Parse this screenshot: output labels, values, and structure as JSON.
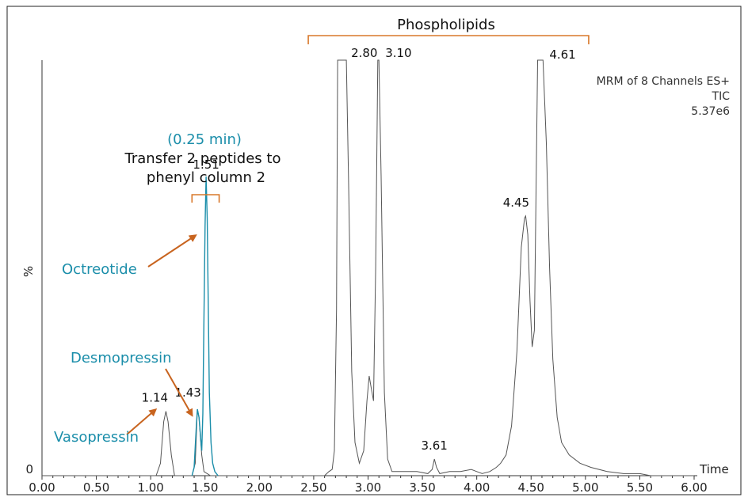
{
  "chart_data": {
    "type": "line",
    "ylabel": "%",
    "xlabel": "Time",
    "xlim": [
      0,
      6
    ],
    "ylim": [
      0,
      100
    ],
    "x_ticks": [
      "0.00",
      "0.50",
      "1.00",
      "1.50",
      "2.00",
      "2.50",
      "3.00",
      "3.50",
      "4.00",
      "4.50",
      "5.00",
      "5.50",
      "6.00"
    ],
    "y_ticks": [
      "0"
    ],
    "info_lines": [
      "MRM of 8 Channels ES+",
      "TIC",
      "5.37e6"
    ],
    "series": [
      {
        "color": "#555555",
        "points": [
          [
            0,
            0
          ],
          [
            1.05,
            0
          ],
          [
            1.09,
            3
          ],
          [
            1.12,
            13
          ],
          [
            1.14,
            15.5
          ],
          [
            1.16,
            13
          ],
          [
            1.19,
            5
          ],
          [
            1.22,
            0
          ],
          [
            1.38,
            0
          ],
          [
            1.41,
            3
          ],
          [
            1.43,
            16
          ],
          [
            1.445,
            14
          ],
          [
            1.455,
            10
          ],
          [
            1.47,
            5
          ],
          [
            1.49,
            1
          ],
          [
            1.55,
            0
          ],
          [
            2.6,
            0
          ],
          [
            2.64,
            1
          ],
          [
            2.67,
            1.5
          ],
          [
            2.69,
            6
          ],
          [
            2.71,
            40
          ],
          [
            2.72,
            100
          ],
          [
            2.8,
            100
          ],
          [
            2.82,
            72
          ],
          [
            2.85,
            25
          ],
          [
            2.88,
            8
          ],
          [
            2.92,
            3
          ],
          [
            2.96,
            6
          ],
          [
            2.99,
            18
          ],
          [
            3.01,
            24
          ],
          [
            3.03,
            21
          ],
          [
            3.05,
            18
          ],
          [
            3.07,
            50
          ],
          [
            3.09,
            100
          ],
          [
            3.1,
            100
          ],
          [
            3.12,
            72
          ],
          [
            3.15,
            20
          ],
          [
            3.18,
            4
          ],
          [
            3.22,
            1
          ],
          [
            3.3,
            1
          ],
          [
            3.45,
            1
          ],
          [
            3.55,
            0.5
          ],
          [
            3.59,
            1.5
          ],
          [
            3.61,
            4
          ],
          [
            3.63,
            2
          ],
          [
            3.66,
            0.5
          ],
          [
            3.75,
            1
          ],
          [
            3.85,
            1
          ],
          [
            3.95,
            1.5
          ],
          [
            4.0,
            1
          ],
          [
            4.05,
            0.5
          ],
          [
            4.12,
            1
          ],
          [
            4.18,
            2
          ],
          [
            4.22,
            3
          ],
          [
            4.27,
            5
          ],
          [
            4.32,
            12
          ],
          [
            4.37,
            30
          ],
          [
            4.41,
            55
          ],
          [
            4.44,
            62
          ],
          [
            4.45,
            62.5
          ],
          [
            4.47,
            58
          ],
          [
            4.49,
            42
          ],
          [
            4.51,
            31
          ],
          [
            4.53,
            35
          ],
          [
            4.56,
            100
          ],
          [
            4.61,
            100
          ],
          [
            4.64,
            80
          ],
          [
            4.67,
            50
          ],
          [
            4.7,
            28
          ],
          [
            4.74,
            14
          ],
          [
            4.78,
            8
          ],
          [
            4.85,
            5
          ],
          [
            4.95,
            3
          ],
          [
            5.05,
            2
          ],
          [
            5.2,
            1
          ],
          [
            5.35,
            0.5
          ],
          [
            5.5,
            0.5
          ],
          [
            5.6,
            0
          ],
          [
            6.0,
            0
          ]
        ]
      },
      {
        "color": "#1b8eaa",
        "points": [
          [
            1.38,
            0
          ],
          [
            1.4,
            2
          ],
          [
            1.42,
            12
          ],
          [
            1.43,
            16
          ],
          [
            1.445,
            14
          ],
          [
            1.46,
            9
          ],
          [
            1.47,
            6
          ],
          [
            1.48,
            15
          ],
          [
            1.49,
            38
          ],
          [
            1.5,
            60
          ],
          [
            1.51,
            72
          ],
          [
            1.52,
            62
          ],
          [
            1.53,
            40
          ],
          [
            1.54,
            20
          ],
          [
            1.555,
            8
          ],
          [
            1.57,
            3
          ],
          [
            1.59,
            1
          ],
          [
            1.62,
            0
          ]
        ]
      }
    ],
    "peak_labels": [
      {
        "x": 1.14,
        "y": 15.5,
        "text": "1.14"
      },
      {
        "x": 1.43,
        "y": 16,
        "text": "1.43"
      },
      {
        "x": 1.51,
        "y": 72,
        "text": "1.51"
      },
      {
        "x": 2.8,
        "y": 100,
        "text": "2.80"
      },
      {
        "x": 3.1,
        "y": 100,
        "text": "3.10"
      },
      {
        "x": 3.61,
        "y": 4,
        "text": "3.61"
      },
      {
        "x": 4.45,
        "y": 62.5,
        "text": "4.45"
      },
      {
        "x": 4.61,
        "y": 100,
        "text": "4.61"
      }
    ],
    "annotations": {
      "phospholipids": {
        "text": "Phospholipids",
        "x_start": 2.45,
        "x_end": 5.03
      },
      "transfer": {
        "time_text": "(0.25 min)",
        "line1": "Transfer 2 peptides to",
        "line2": "phenyl column 2",
        "x_start": 1.38,
        "x_end": 1.63
      },
      "labels": [
        {
          "text": "Octreotide",
          "target_x": 1.51,
          "target_y": 59
        },
        {
          "text": "Desmopressin",
          "target_x": 1.44,
          "target_y": 16
        },
        {
          "text": "Vasopressin",
          "target_x": 1.12,
          "target_y": 15
        }
      ]
    }
  }
}
